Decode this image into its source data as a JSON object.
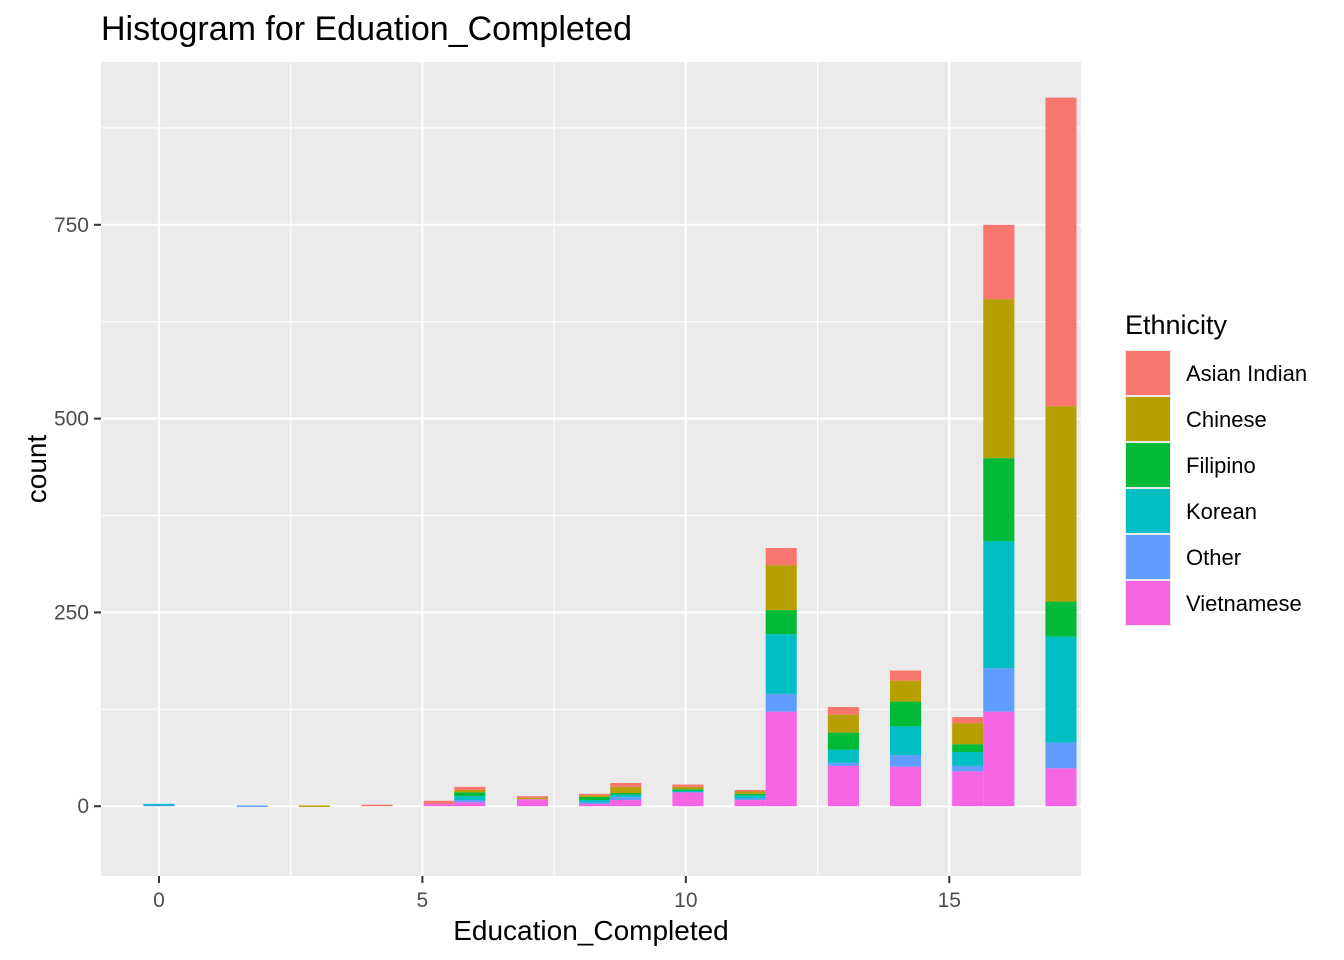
{
  "chart_data": {
    "type": "bar",
    "stacked": true,
    "title": "Histogram for Eduation_Completed",
    "xlabel": "Education_Completed",
    "ylabel": "count",
    "xlim": [
      -1.1,
      17.5
    ],
    "ylim": [
      -90,
      960
    ],
    "bin_width": 0.59,
    "x_ticks": [
      0,
      5,
      10,
      15
    ],
    "x_tick_labels": [
      "0",
      "5",
      "10",
      "15"
    ],
    "y_ticks": [
      0,
      250,
      500,
      750
    ],
    "y_tick_labels": [
      "0",
      "250",
      "500",
      "750"
    ],
    "grid": true,
    "legend": {
      "title": "Ethnicity",
      "position": "right"
    },
    "series": [
      {
        "name": "Asian Indian",
        "color": "#F8766D"
      },
      {
        "name": "Chinese",
        "color": "#B79F00"
      },
      {
        "name": "Filipino",
        "color": "#00BA38"
      },
      {
        "name": "Korean",
        "color": "#00BFC4"
      },
      {
        "name": "Other",
        "color": "#619CFF"
      },
      {
        "name": "Vietnamese",
        "color": "#F564E3"
      }
    ],
    "bins": [
      {
        "x": 0.0,
        "counts": [
          0,
          0,
          0,
          1,
          2,
          0
        ]
      },
      {
        "x": 1.77,
        "counts": [
          0,
          0,
          0,
          0,
          1,
          0
        ]
      },
      {
        "x": 2.95,
        "counts": [
          0,
          1,
          0,
          0,
          0,
          0
        ]
      },
      {
        "x": 4.14,
        "counts": [
          2,
          0,
          0,
          0,
          0,
          0
        ]
      },
      {
        "x": 5.32,
        "counts": [
          4,
          0,
          0,
          0,
          0,
          3
        ]
      },
      {
        "x": 5.9,
        "counts": [
          4,
          3,
          5,
          5,
          3,
          5
        ]
      },
      {
        "x": 7.09,
        "counts": [
          2,
          2,
          0,
          0,
          0,
          9
        ]
      },
      {
        "x": 8.27,
        "counts": [
          2,
          2,
          4,
          3,
          1,
          4
        ]
      },
      {
        "x": 8.86,
        "counts": [
          5,
          8,
          2,
          3,
          4,
          8
        ]
      },
      {
        "x": 10.04,
        "counts": [
          3,
          3,
          1,
          3,
          0,
          18
        ]
      },
      {
        "x": 11.22,
        "counts": [
          2,
          3,
          2,
          4,
          1,
          9
        ]
      },
      {
        "x": 11.81,
        "counts": [
          22,
          58,
          31,
          77,
          23,
          122
        ]
      },
      {
        "x": 12.99,
        "counts": [
          10,
          23,
          22,
          17,
          4,
          52
        ]
      },
      {
        "x": 14.17,
        "counts": [
          13,
          27,
          32,
          37,
          15,
          51
        ]
      },
      {
        "x": 15.35,
        "counts": [
          8,
          27,
          10,
          18,
          7,
          45
        ]
      },
      {
        "x": 15.94,
        "counts": [
          96,
          205,
          107,
          164,
          56,
          122
        ]
      },
      {
        "x": 17.12,
        "counts": [
          398,
          252,
          45,
          137,
          33,
          49
        ]
      }
    ]
  }
}
